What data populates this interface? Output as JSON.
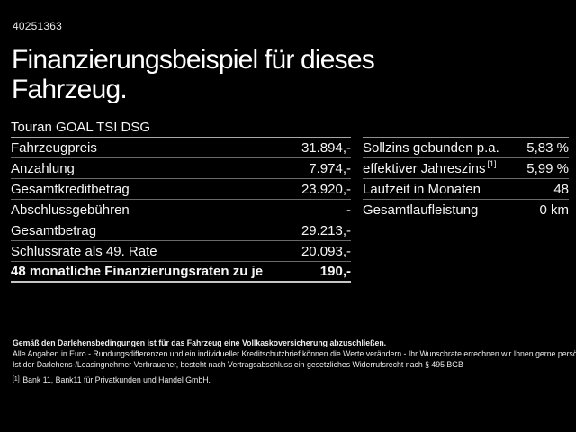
{
  "page": {
    "listing_id": "40251363",
    "title_line1": "Finanzierungsbeispiel für dieses",
    "title_line2": "Fahrzeug."
  },
  "tables": {
    "left": {
      "header": "Touran GOAL TSI DSG",
      "rows": [
        {
          "label": "Fahrzeugpreis",
          "value": "31.894,-"
        },
        {
          "label": "Anzahlung",
          "value": "7.974,-"
        },
        {
          "label": "Gesamtkreditbetrag",
          "value": "23.920,-"
        },
        {
          "label": "Abschlussgebühren",
          "value": "-"
        },
        {
          "label": "Gesamtbetrag",
          "value": "29.213,-"
        },
        {
          "label": "Schlussrate als 49. Rate",
          "value": "20.093,-"
        },
        {
          "label": "48 monatliche Finanzierungsraten zu je",
          "value": "190,-"
        }
      ]
    },
    "right": {
      "rows": [
        {
          "label": "Sollzins gebunden p.a.",
          "value": "5,83 %"
        },
        {
          "label": "effektiver Jahreszins",
          "sup": "[1]",
          "value": "5,99 %"
        },
        {
          "label": "Laufzeit in Monaten",
          "value": "48"
        },
        {
          "label": "Gesamtlaufleistung",
          "value": "0 km"
        }
      ]
    }
  },
  "fine_print": {
    "line1": "Gemäß den Darlehensbedingungen ist für das Fahrzeug eine Vollkaskoversicherung abzuschließen.",
    "line2": "Alle Angaben in Euro - Rundungsdifferenzen und ein individueller Kreditschutzbrief können die Werte verändern - Ihr Wunschrate errechnen wir Ihnen gerne persönlich",
    "line3": "Ist der Darlehens-/Leasingnehmer Verbraucher, besteht nach Vertragsabschluss ein gesetzliches Widerrufsrecht nach § 495 BGB",
    "footnote_marker": "[1]",
    "footnote_text": "Bank 11, Bank11 für Privatkunden und Handel GmbH."
  },
  "colors": {
    "background": "#000000",
    "text": "#f5f5f5",
    "divider": "#6a6a6a",
    "divider_strong": "#b8b8b8"
  }
}
